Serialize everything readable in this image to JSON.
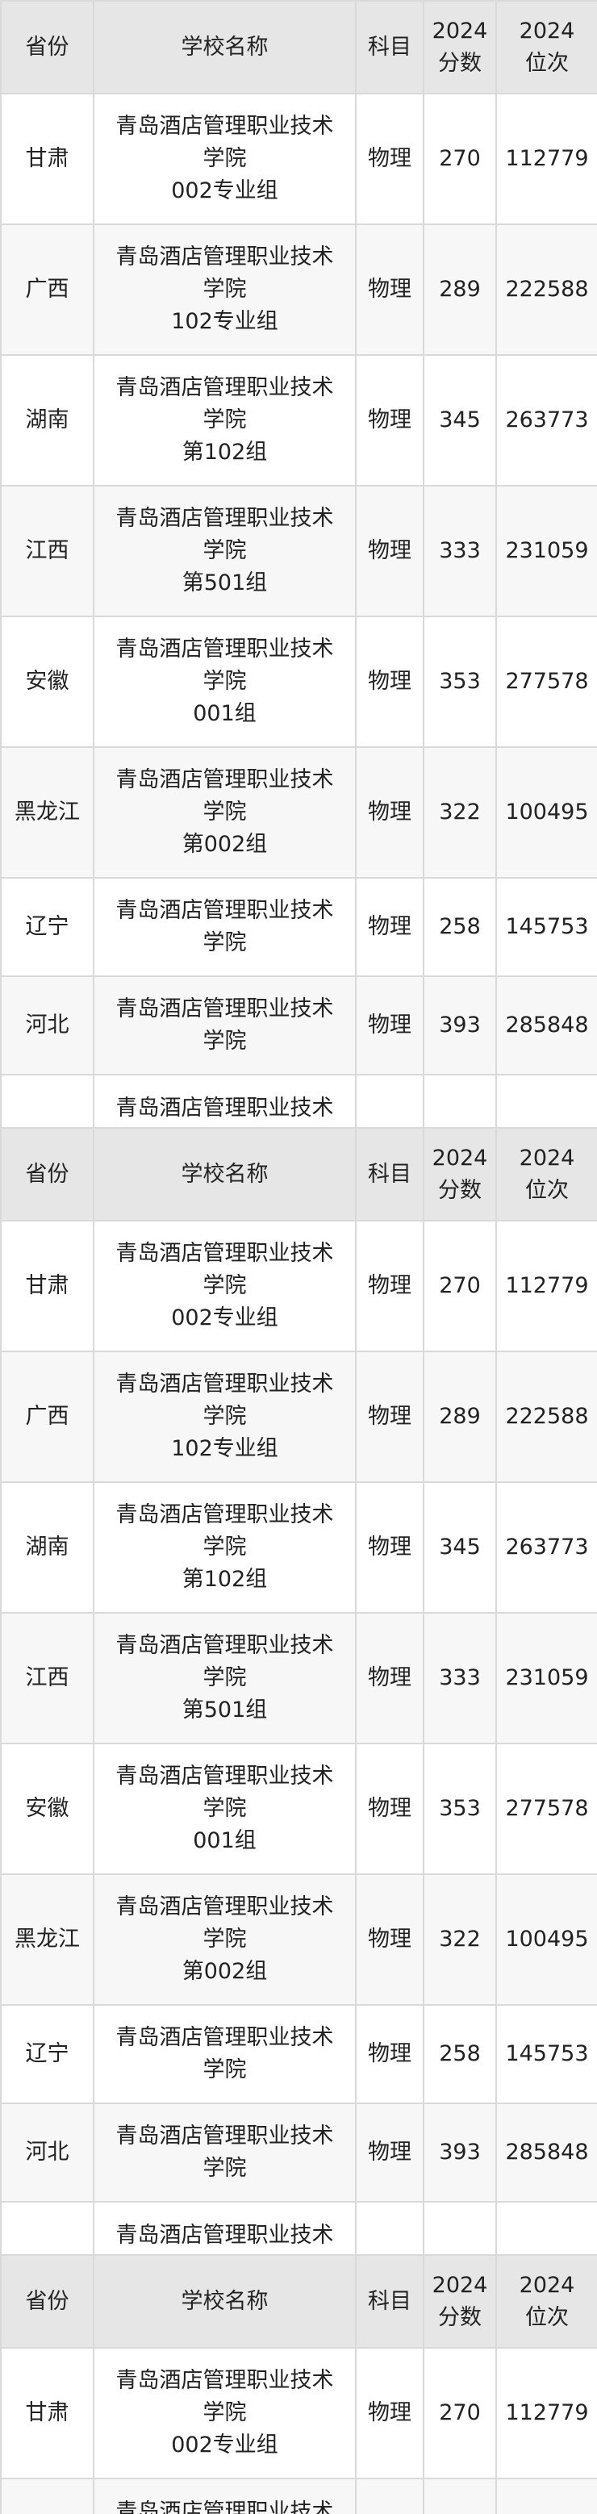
{
  "header": {
    "province": "省份",
    "school": "学校名称",
    "subject": "科目",
    "score_year": "2024",
    "score_label": "分数",
    "rank_year": "2024",
    "rank_label": "位次"
  },
  "rows": [
    {
      "province": "甘肃",
      "school": "青岛酒店管理职业技术",
      "school2": "学院",
      "group": "002专业组",
      "subject": "物理",
      "score": "270",
      "rank": "112779"
    },
    {
      "province": "广西",
      "school": "青岛酒店管理职业技术",
      "school2": "学院",
      "group": "102专业组",
      "subject": "物理",
      "score": "289",
      "rank": "222588"
    },
    {
      "province": "湖南",
      "school": "青岛酒店管理职业技术",
      "school2": "学院",
      "group": "第102组",
      "subject": "物理",
      "score": "345",
      "rank": "263773"
    },
    {
      "province": "江西",
      "school": "青岛酒店管理职业技术",
      "school2": "学院",
      "group": "第501组",
      "subject": "物理",
      "score": "333",
      "rank": "231059"
    },
    {
      "province": "安徽",
      "school": "青岛酒店管理职业技术",
      "school2": "学院",
      "group": "001组",
      "subject": "物理",
      "score": "353",
      "rank": "277578"
    },
    {
      "province": "黑龙江",
      "school": "青岛酒店管理职业技术",
      "school2": "学院",
      "group": "第002组",
      "subject": "物理",
      "score": "322",
      "rank": "100495"
    },
    {
      "province": "辽宁",
      "school": "青岛酒店管理职业技术",
      "school2": "学院",
      "group": "",
      "subject": "物理",
      "score": "258",
      "rank": "145753"
    },
    {
      "province": "河北",
      "school": "青岛酒店管理职业技术",
      "school2": "学院",
      "group": "",
      "subject": "物理",
      "score": "393",
      "rank": "285848"
    }
  ],
  "partial_row": {
    "school": "青岛酒店管理职业技术"
  }
}
